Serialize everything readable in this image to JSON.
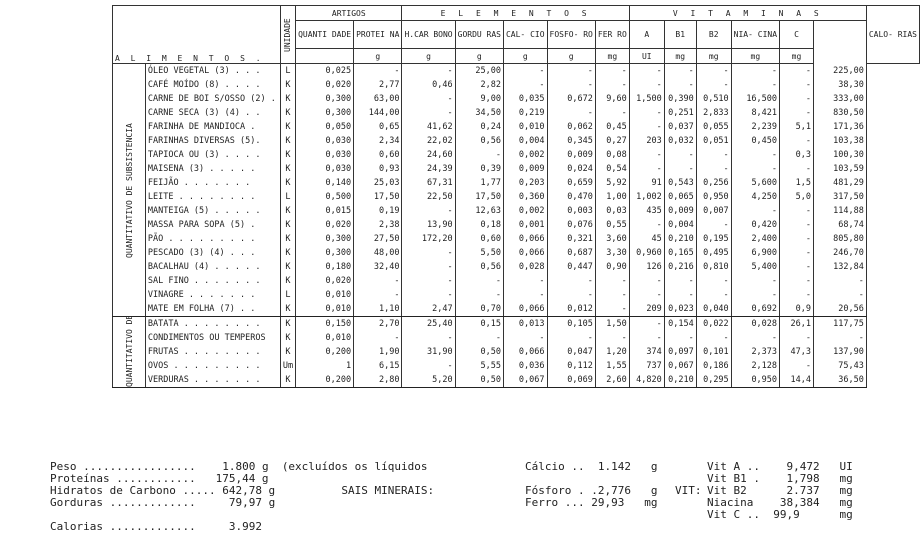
{
  "header": {
    "artigos": "ARTIGOS",
    "elementos": "E L E M E N T O S",
    "vitaminas": "V I T A M I N A S",
    "alimentos": "A L I M E N T O S .",
    "unidade": "UNIDADE",
    "columns": [
      "QUANTI DADE",
      "PROTEI NA",
      "H.CAR BONO",
      "GORDU RAS",
      "CAL- CIO",
      "FOSFO- RO",
      "FER RO",
      "A",
      "B1",
      "B2",
      "NIA- CINA",
      "C",
      "CALO- RIAS"
    ],
    "units": [
      "",
      "g",
      "g",
      "g",
      "g",
      "g",
      "mg",
      "UI",
      "mg",
      "mg",
      "mg",
      "mg",
      ""
    ]
  },
  "sections": [
    {
      "label": "QUANTITATIVO DE SUBSISTENCIA",
      "rows": [
        [
          "ÓLEO VEGETAL (3) . . .",
          "L",
          "0,025",
          "-",
          "-",
          "25,00",
          "-",
          "-",
          "-",
          "-",
          "-",
          "-",
          "-",
          "-",
          "225,00"
        ],
        [
          "CAFÉ MOÍDO (8) . . . .",
          "K",
          "0,020",
          "2,77",
          "0,46",
          "2,82",
          "-",
          "-",
          "-",
          "-",
          "-",
          "-",
          "-",
          "-",
          "38,30"
        ],
        [
          "CARNE DE BOI S/OSSO (2) .",
          "K",
          "0,300",
          "63,00",
          "-",
          "9,00",
          "0,035",
          "0,672",
          "9,60",
          "1,500",
          "0,390",
          "0,510",
          "16,500",
          "-",
          "333,00"
        ],
        [
          "CARNE SECA (3) (4) . .",
          "K",
          "0,300",
          "144,00",
          "-",
          "34,50",
          "0,219",
          "-",
          "-",
          "-",
          "0,251",
          "2,833",
          "8,421",
          "-",
          "830,50"
        ],
        [
          "FARINHA DE MANDIOCA .",
          "K",
          "0,050",
          "0,65",
          "41,62",
          "0,24",
          "0,010",
          "0,062",
          "0,45",
          "-",
          "0,037",
          "0,055",
          "2,239",
          "5,1",
          "171,36"
        ],
        [
          "FARINHAS DIVERSAS (5).",
          "K",
          "0,030",
          "2,34",
          "22,02",
          "0,56",
          "0,004",
          "0,345",
          "0,27",
          "203",
          "0,032",
          "0,051",
          "0,450",
          "-",
          "103,38"
        ],
        [
          "TAPIOCA OU (3) . . . .",
          "K",
          "0,030",
          "0,60",
          "24,60",
          "-",
          "0,002",
          "0,009",
          "0,08",
          "-",
          "-",
          "-",
          "-",
          "0,3",
          "100,30"
        ],
        [
          "MAISENA (3) . . . . .",
          "K",
          "0,030",
          "0,93",
          "24,39",
          "0,39",
          "0,009",
          "0,024",
          "0,54",
          "-",
          "-",
          "-",
          "-",
          "-",
          "103,59"
        ],
        [
          "FEIJÃO . . . . . . .",
          "K",
          "0,140",
          "25,03",
          "67,31",
          "1,77",
          "0,203",
          "0,659",
          "5,92",
          "91",
          "0,543",
          "0,256",
          "5,600",
          "1,5",
          "481,29"
        ],
        [
          "LEITE . . . . . . . .",
          "L",
          "0,500",
          "17,50",
          "22,50",
          "17,50",
          "0,360",
          "0,470",
          "1,00",
          "1,002",
          "0,065",
          "0,950",
          "4,250",
          "5,0",
          "317,50"
        ],
        [
          "MANTEIGA (5) . . . . .",
          "K",
          "0,015",
          "0,19",
          "-",
          "12,63",
          "0,002",
          "0,003",
          "0,03",
          "435",
          "0,009",
          "0,007",
          "-",
          "-",
          "114,88"
        ],
        [
          "MASSA PARA SOPA (5) .",
          "K",
          "0,020",
          "2,38",
          "13,90",
          "0,18",
          "0,001",
          "0,076",
          "0,55",
          "-",
          "0,004",
          "-",
          "0,420",
          "-",
          "68,74"
        ],
        [
          "PÃO . . . . . . . . .",
          "K",
          "0,300",
          "27,50",
          "172,20",
          "0,60",
          "0,066",
          "0,321",
          "3,60",
          "45",
          "0,210",
          "0,195",
          "2,400",
          "-",
          "805,80"
        ],
        [
          "PESCADO (3) (4) . . .",
          "K",
          "0,300",
          "48,00",
          "-",
          "5,50",
          "0,066",
          "0,687",
          "3,30",
          "0,960",
          "0,165",
          "0,495",
          "6,900",
          "-",
          "246,70"
        ],
        [
          "BACALHAU (4) . . . . .",
          "K",
          "0,180",
          "32,40",
          "-",
          "0,56",
          "0,028",
          "0,447",
          "0,90",
          "126",
          "0,216",
          "0,810",
          "5,400",
          "-",
          "132,84"
        ],
        [
          "SAL FINO . . . . . . .",
          "K",
          "0,020",
          "-",
          "-",
          "-",
          "-",
          "-",
          "-",
          "-",
          "-",
          "-",
          "-",
          "-",
          "-"
        ],
        [
          "VINAGRE . . . . . . .",
          "L",
          "0,010",
          "-",
          "-",
          "-",
          "-",
          "-",
          "-",
          "-",
          "-",
          "-",
          "-",
          "-",
          "-"
        ],
        [
          "MATE EM FOLHA (7) . .",
          "K",
          "0,010",
          "1,10",
          "2,47",
          "0,70",
          "0,066",
          "0,012",
          "-",
          "209",
          "0,023",
          "0,040",
          "0,692",
          "0,9",
          "20,56"
        ]
      ]
    },
    {
      "label": "QUANTITATIVO DE RANCHO",
      "rows": [
        [
          "BATATA . . . . . . . .",
          "K",
          "0,150",
          "2,70",
          "25,40",
          "0,15",
          "0,013",
          "0,105",
          "1,50",
          "-",
          "0,154",
          "0,022",
          "0,028",
          "26,1",
          "117,75"
        ],
        [
          "CONDIMENTOS OU TEMPEROS",
          "K",
          "0,010",
          "-",
          "-",
          "-",
          "-",
          "-",
          "-",
          "-",
          "-",
          "-",
          "-",
          "-",
          "-"
        ],
        [
          "FRUTAS . . . . . . . .",
          "K",
          "0,200",
          "1,90",
          "31,90",
          "0,50",
          "0,066",
          "0,047",
          "1,20",
          "374",
          "0,097",
          "0,101",
          "2,373",
          "47,3",
          "137,90"
        ],
        [
          "OVOS . . . . . . . . .",
          "Um",
          "1",
          "6,15",
          "-",
          "5,55",
          "0,036",
          "0,112",
          "1,55",
          "737",
          "0,067",
          "0,186",
          "2,128",
          "-",
          "75,43"
        ],
        [
          "VERDURAS . . . . . . .",
          "K",
          "0,200",
          "2,80",
          "5,20",
          "0,50",
          "0,067",
          "0,069",
          "2,60",
          "4,820",
          "0,210",
          "0,295",
          "0,950",
          "14,4",
          "36,50"
        ]
      ]
    }
  ],
  "summary": {
    "peso": "Peso .................",
    "peso_v": "1.800 g",
    "note": "(excluídos os líquidos",
    "prot": "Proteínas ............",
    "prot_v": "175,44 g",
    "hc": "Hidratos de Carbono .....",
    "hc_v": "642,78 g",
    "gord": "Gorduras .............",
    "gord_v": "79,97 g",
    "cal": "Calorias .............",
    "cal_v": "3.992",
    "sais": "SAIS MINERAIS:",
    "calcio": "Cálcio ..  1.142   g",
    "fosforo": "Fósforo . .2,776   g",
    "ferro": "Ferro ... 29,93   mg",
    "vit": "VIT:",
    "vita": "Vit A ..    9,472   UI",
    "vitb1": "Vit B1 .    1,798   mg",
    "vitb2": "Vit B2      2.737   mg",
    "niac": "Niacina    38,384   mg",
    "vitc": "Vit C ..  99,9      mg"
  }
}
